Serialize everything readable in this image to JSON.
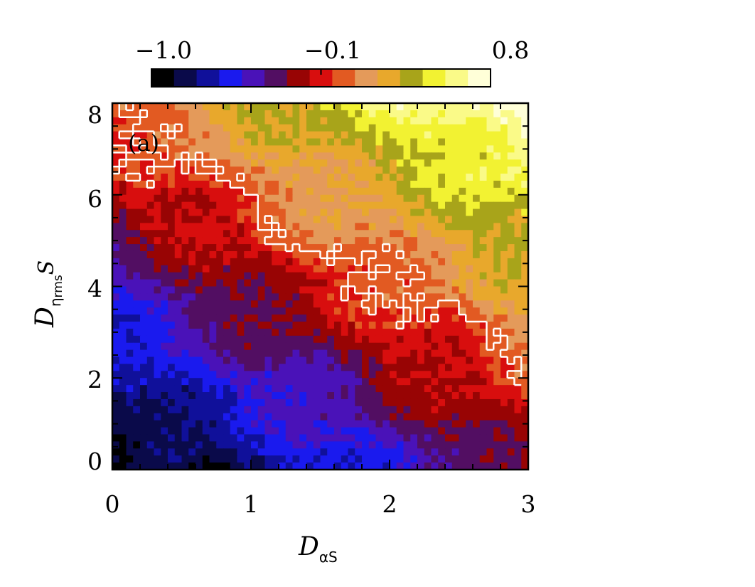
{
  "chart_data": {
    "type": "heatmap",
    "panel_label": "(a)",
    "xlabel": {
      "main": "D",
      "sub": "αS"
    },
    "ylabel": {
      "main": "D",
      "sub": "η",
      "subsub": "rms",
      "tail": "S"
    },
    "x_ticks": [
      "0",
      "1",
      "2",
      "3"
    ],
    "y_ticks": [
      "0",
      "2",
      "4",
      "6",
      "8"
    ],
    "xlim": [
      0,
      3
    ],
    "ylim": [
      0,
      8
    ],
    "colorbar": {
      "range": [
        -1.0,
        0.8
      ],
      "tick_labels": [
        "−1.0",
        "−0.1",
        "0.8"
      ],
      "tick_values": [
        -1.0,
        -0.1,
        0.8
      ],
      "levels": [
        "#000000",
        "#0a0a4a",
        "#10109a",
        "#1a1aee",
        "#4a12b8",
        "#520e62",
        "#980404",
        "#d80e0e",
        "#e25a22",
        "#e49a5a",
        "#e8a82c",
        "#a8a41a",
        "#f2f232",
        "#fafa88",
        "#ffffd8"
      ]
    },
    "colors": {
      "contour_line": "#ffffff",
      "frame": "#000000"
    },
    "grid": false
  }
}
